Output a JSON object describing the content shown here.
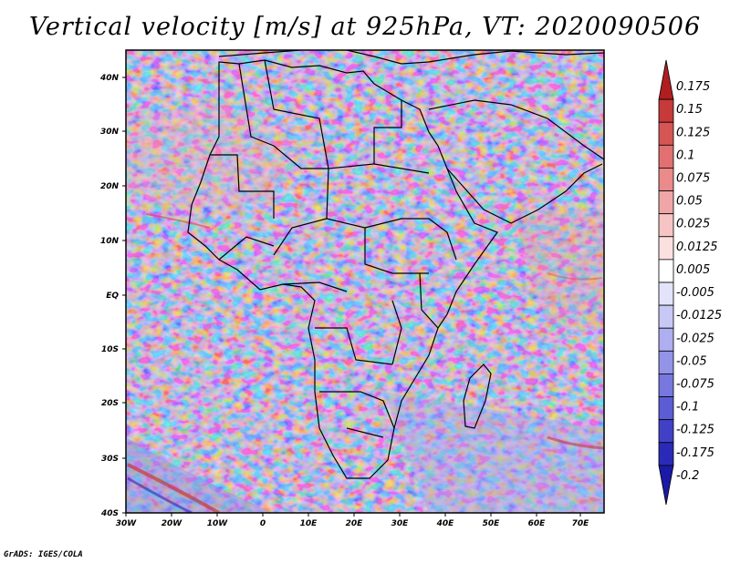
{
  "title": "Vertical velocity [m/s] at 925hPa, VT: 2020090506",
  "credit": "GrADS: IGES/COLA",
  "lat_ticks": [
    "40N",
    "30N",
    "20N",
    "10N",
    "EQ",
    "10S",
    "20S",
    "30S",
    "40S"
  ],
  "lon_ticks": [
    "30W",
    "20W",
    "10W",
    "0",
    "10E",
    "20E",
    "30E",
    "40E",
    "50E",
    "60E",
    "70E"
  ],
  "colorbar": {
    "labels": [
      "0.175",
      "0.15",
      "0.125",
      "0.1",
      "0.075",
      "0.05",
      "0.025",
      "0.0125",
      "0.005",
      "-0.005",
      "-0.0125",
      "-0.025",
      "-0.05",
      "-0.075",
      "-0.1",
      "-0.125",
      "-0.175",
      "-0.2"
    ],
    "colors": [
      "#b01f1f",
      "#c63a3a",
      "#d65656",
      "#e27070",
      "#ea8a8a",
      "#f0a6a6",
      "#f6c4c4",
      "#fbe0e0",
      "#ffffff",
      "#e3e3fa",
      "#c8c8f5",
      "#aeaef0",
      "#9393e8",
      "#7777df",
      "#5c5cd5",
      "#4141c8",
      "#2a2ab8",
      "#1a1aa6"
    ]
  }
}
